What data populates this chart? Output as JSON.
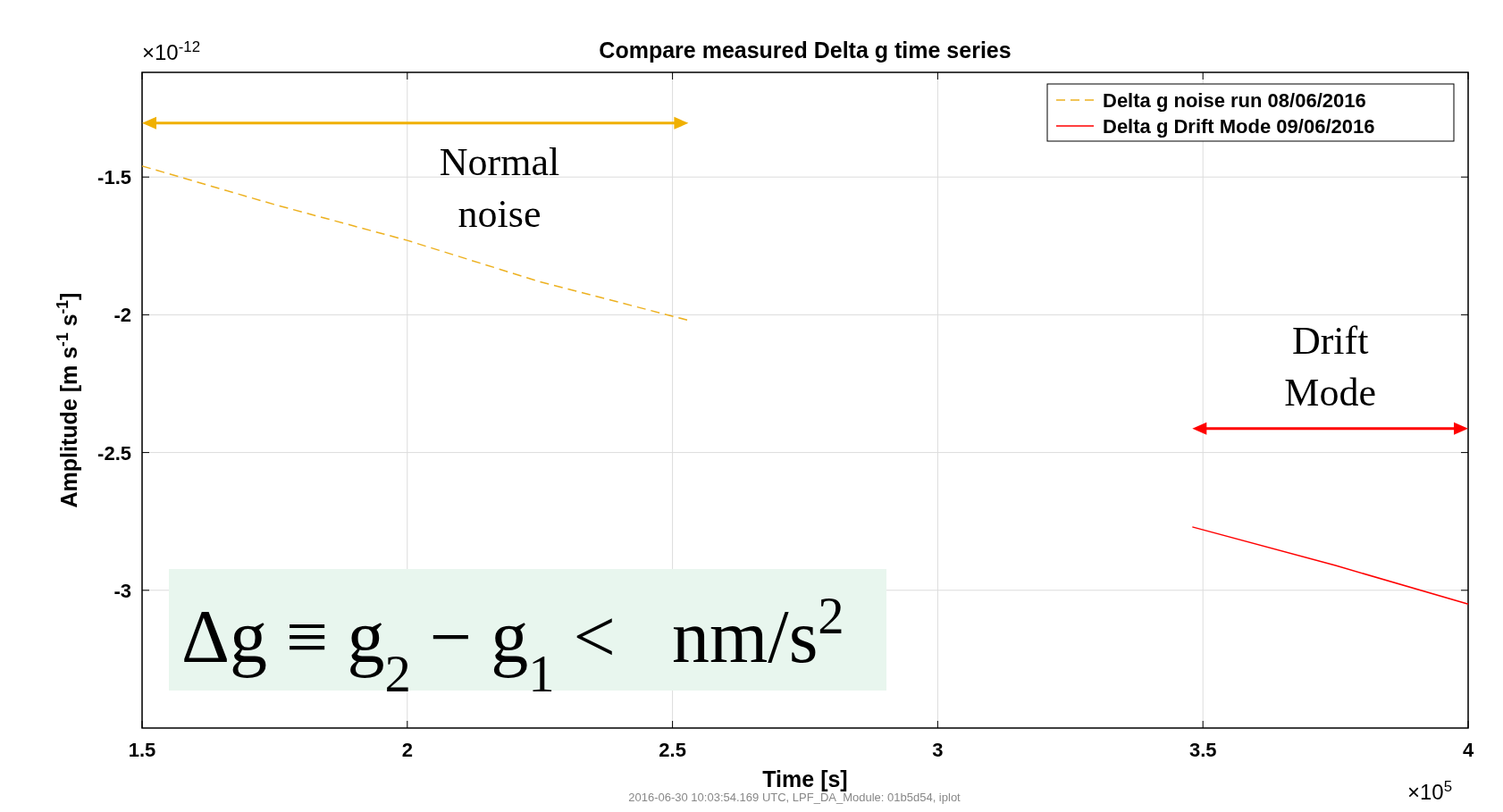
{
  "chart_data": {
    "type": "line",
    "title": "Compare measured Delta g time series",
    "xlabel": "Time  [s]",
    "ylabel": "Amplitude  [m s$^{-1}$ s$^{-1}$]",
    "xlim": [
      1.5,
      4
    ],
    "xticks": [
      1.5,
      2,
      2.5,
      3,
      3.5,
      4
    ],
    "ylim": [
      -3.5,
      -1.12
    ],
    "yticks": [
      -3,
      -2.5,
      -2,
      -1.5
    ],
    "grid": true,
    "legend": "top right",
    "series": [
      {
        "name": "Delta g noise run 08/06/2016",
        "color": "#edb120",
        "line_style": "dashed",
        "x": [
          1.5,
          1.75,
          2,
          2.25,
          2.53
        ],
        "values": [
          -1.46,
          -1.6,
          -1.73,
          -1.88,
          -2.02
        ]
      },
      {
        "name": "Delta g Drift Mode 09/06/2016",
        "color": "#ff0000",
        "line_style": "solid",
        "x": [
          3.48,
          3.75,
          4
        ],
        "values": [
          -2.77,
          -2.91,
          -3.05
        ]
      }
    ],
    "annotations": [
      "Normal noise",
      "Drift Mode",
      "×10$^{-12}$",
      "×10$^{5}$",
      "Δg ≡ g$_{2}$ − g$_{1}$ <   nm/s$^{2}$",
      "2016-06-30 10:03:54.169 UTC, LPF_DA_Module: 01b5d54, iplot"
    ]
  }
}
